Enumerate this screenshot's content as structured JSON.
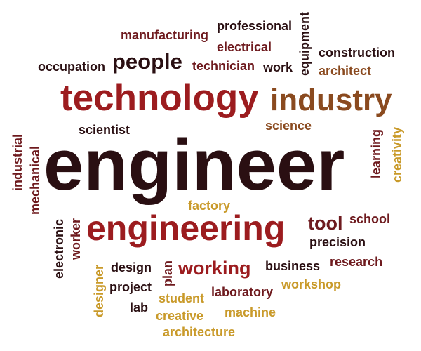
{
  "colors": {
    "dark": "#2a0f12",
    "maroon": "#6e1a1e",
    "red": "#9c1c1f",
    "brown": "#8a4a1f",
    "orange": "#c46a1a",
    "gold": "#c99a2a"
  },
  "words": [
    {
      "text": "manufacturing",
      "color": "maroon"
    },
    {
      "text": "professional",
      "color": "dark"
    },
    {
      "text": "equipment",
      "color": "dark"
    },
    {
      "text": "electrical",
      "color": "maroon"
    },
    {
      "text": "construction",
      "color": "dark"
    },
    {
      "text": "occupation",
      "color": "dark"
    },
    {
      "text": "people",
      "color": "dark"
    },
    {
      "text": "technician",
      "color": "maroon"
    },
    {
      "text": "work",
      "color": "dark"
    },
    {
      "text": "architect",
      "color": "brown"
    },
    {
      "text": "technology",
      "color": "red"
    },
    {
      "text": "industry",
      "color": "brown"
    },
    {
      "text": "scientist",
      "color": "dark"
    },
    {
      "text": "science",
      "color": "brown"
    },
    {
      "text": "learning",
      "color": "maroon"
    },
    {
      "text": "creativity",
      "color": "gold"
    },
    {
      "text": "industrial",
      "color": "maroon"
    },
    {
      "text": "mechanical",
      "color": "maroon"
    },
    {
      "text": "engineer",
      "color": "dark"
    },
    {
      "text": "factory",
      "color": "gold"
    },
    {
      "text": "electronic",
      "color": "dark"
    },
    {
      "text": "worker",
      "color": "maroon"
    },
    {
      "text": "engineering",
      "color": "red"
    },
    {
      "text": "tool",
      "color": "maroon"
    },
    {
      "text": "school",
      "color": "maroon"
    },
    {
      "text": "precision",
      "color": "dark"
    },
    {
      "text": "designer",
      "color": "gold"
    },
    {
      "text": "design",
      "color": "dark"
    },
    {
      "text": "plan",
      "color": "maroon"
    },
    {
      "text": "working",
      "color": "red"
    },
    {
      "text": "business",
      "color": "dark"
    },
    {
      "text": "research",
      "color": "maroon"
    },
    {
      "text": "project",
      "color": "dark"
    },
    {
      "text": "laboratory",
      "color": "maroon"
    },
    {
      "text": "workshop",
      "color": "gold"
    },
    {
      "text": "student",
      "color": "gold"
    },
    {
      "text": "lab",
      "color": "dark"
    },
    {
      "text": "creative",
      "color": "gold"
    },
    {
      "text": "machine",
      "color": "gold"
    },
    {
      "text": "architecture",
      "color": "gold"
    }
  ]
}
